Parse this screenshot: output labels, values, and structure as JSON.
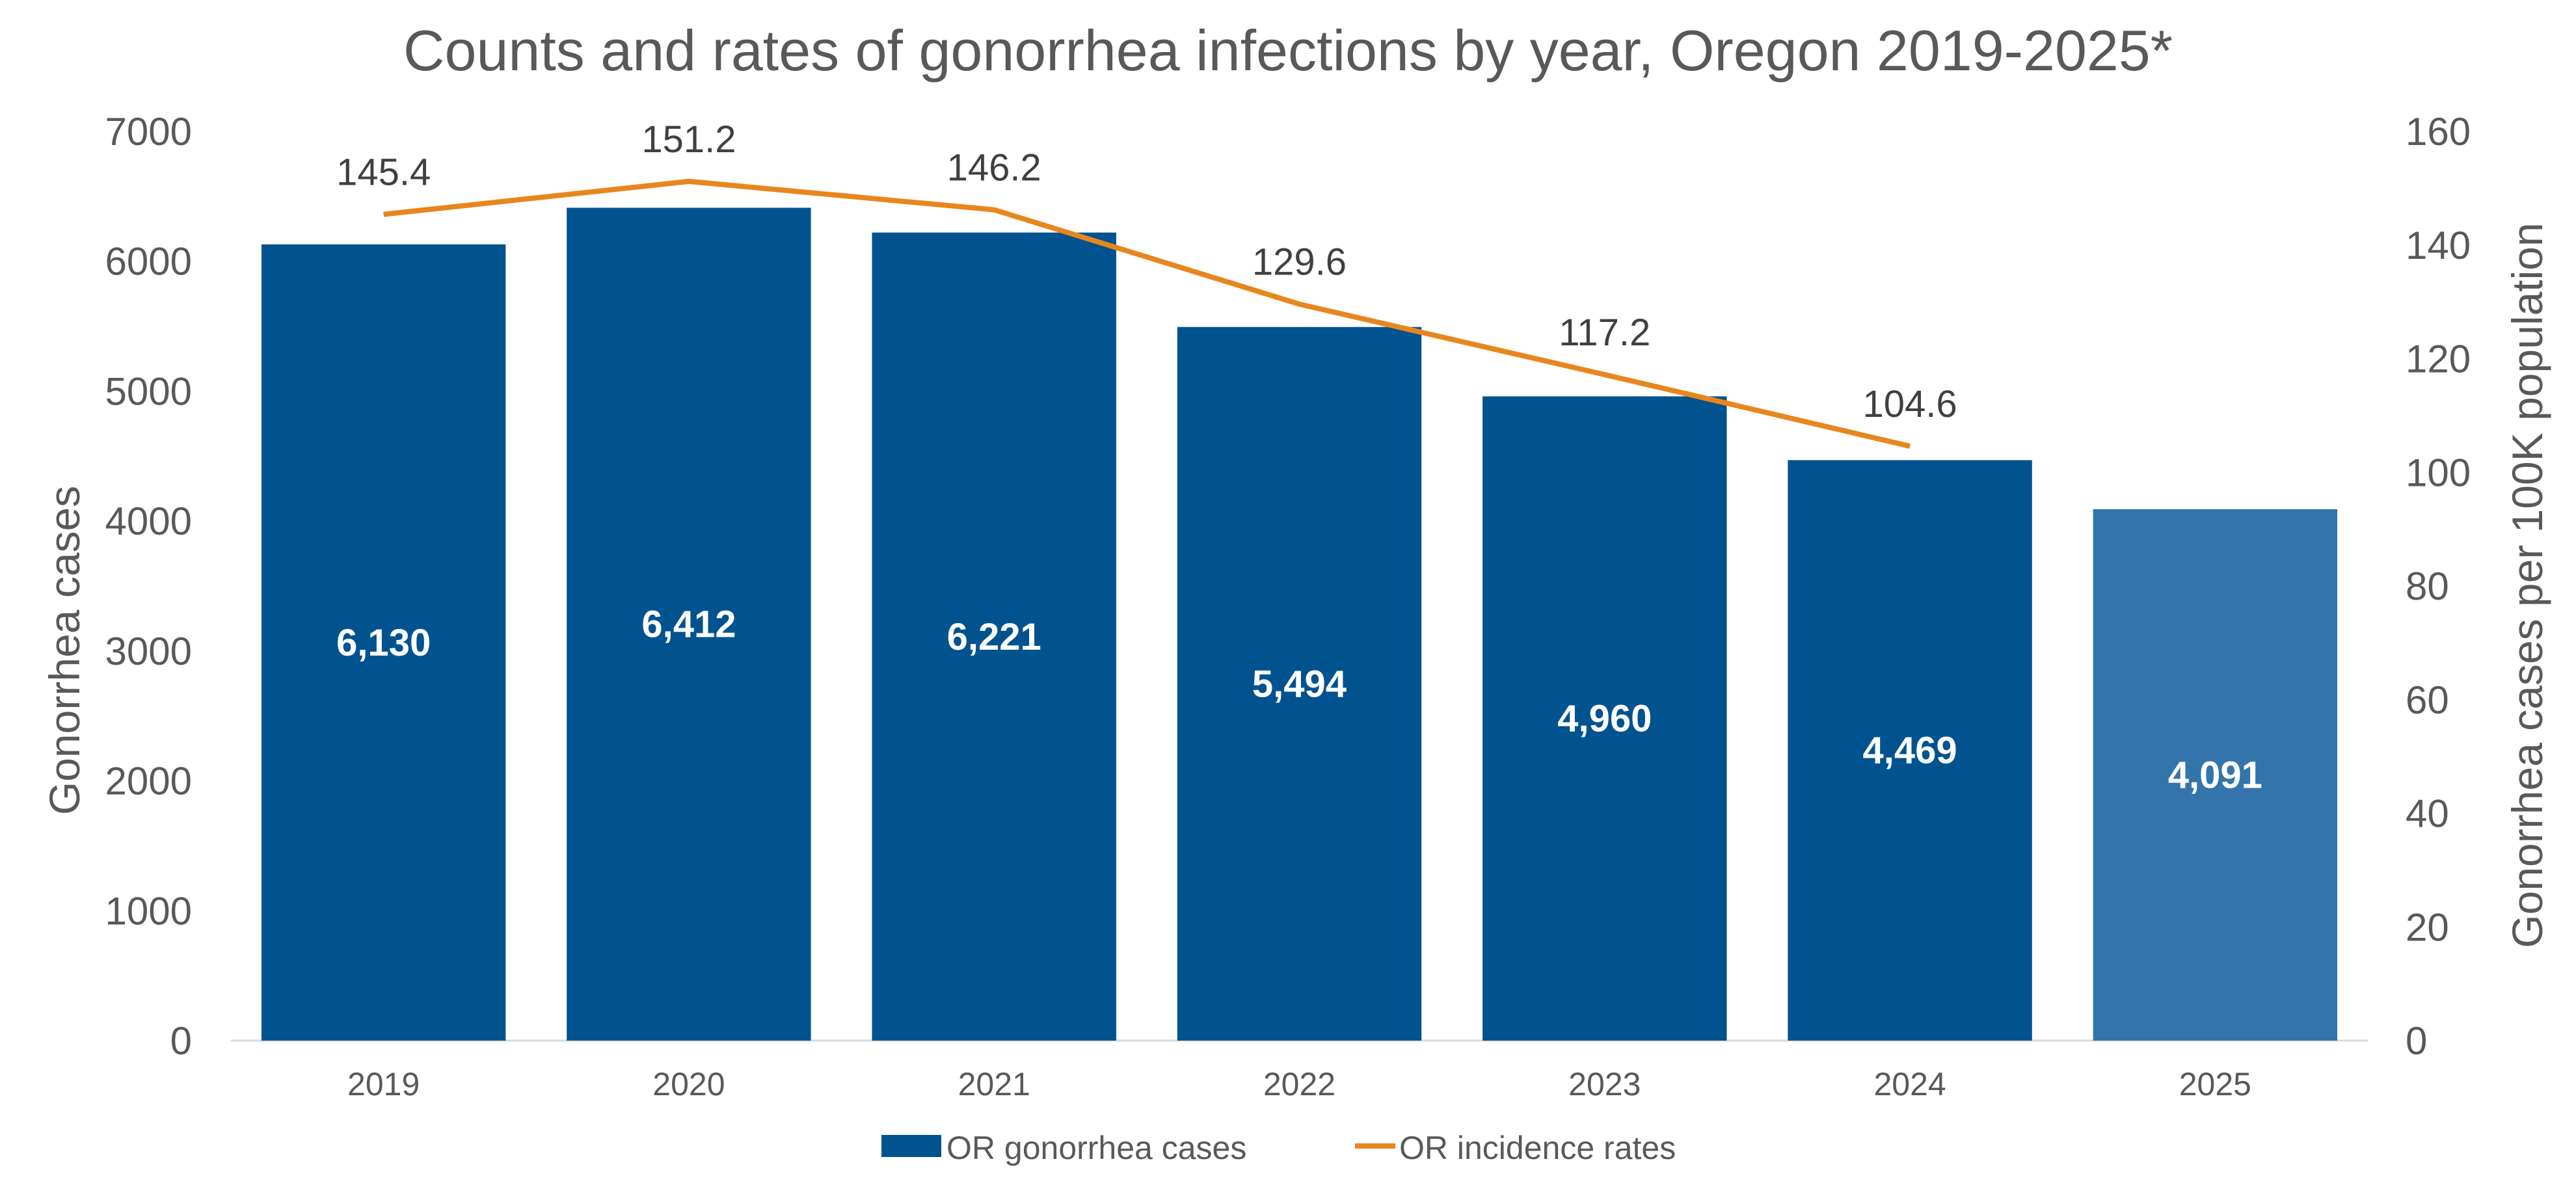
{
  "chart_data": {
    "type": "bar",
    "title": "Counts and rates of gonorrhea infections by year, Oregon 2019-2025*",
    "categories": [
      "2019",
      "2020",
      "2021",
      "2022",
      "2023",
      "2024",
      "2025"
    ],
    "xlabel": "",
    "ylabel": "Gonorrhea cases",
    "y2label": "Gonorrhea cases per 100K population",
    "ylim": [
      0,
      7000
    ],
    "y2lim": [
      0,
      160
    ],
    "yticks": [
      "0",
      "1000",
      "2000",
      "3000",
      "4000",
      "5000",
      "6000",
      "7000"
    ],
    "y2ticks": [
      "0",
      "20",
      "40",
      "60",
      "80",
      "100",
      "120",
      "140",
      "160"
    ],
    "series": [
      {
        "name": "OR gonorrhea cases",
        "type": "bar",
        "axis": "left",
        "values": [
          6130,
          6412,
          6221,
          5494,
          4960,
          4469,
          4091
        ],
        "labels": [
          "6,130",
          "6,412",
          "6,221",
          "5,494",
          "4,960",
          "4,469",
          "4,091"
        ],
        "color": "#00538F",
        "last_color": "#3375AA"
      },
      {
        "name": "OR incidence rates",
        "type": "line",
        "axis": "right",
        "values": [
          145.4,
          151.2,
          146.2,
          129.6,
          117.2,
          104.6,
          null
        ],
        "labels": [
          "145.4",
          "151.2",
          "146.2",
          "129.6",
          "117.2",
          "104.6",
          ""
        ],
        "color": "#E8861E"
      }
    ],
    "grid": false,
    "legend_position": "bottom"
  }
}
